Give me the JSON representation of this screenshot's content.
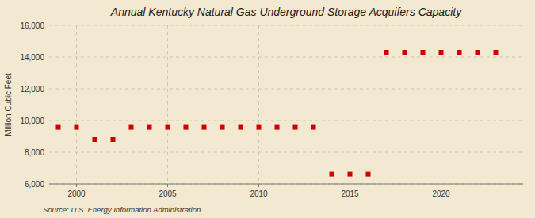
{
  "chart_data": {
    "type": "scatter",
    "title": "Annual Kentucky Natural Gas Underground Storage Acquifers Capacity",
    "y_label": "Million Cubic Feet",
    "annotations": [
      "Source: U.S. Energy Information Administration"
    ],
    "x": [
      1999,
      2000,
      2001,
      2002,
      2003,
      2004,
      2005,
      2006,
      2007,
      2008,
      2009,
      2010,
      2011,
      2012,
      2013,
      2014,
      2015,
      2016,
      2017,
      2018,
      2019,
      2020,
      2021,
      2022,
      2023
    ],
    "values": [
      9570,
      9570,
      8800,
      8800,
      9570,
      9570,
      9570,
      9570,
      9570,
      9570,
      9570,
      9570,
      9570,
      9570,
      9570,
      6620,
      6620,
      6620,
      14300,
      14300,
      14300,
      14300,
      14300,
      14300,
      14300
    ],
    "color": "#cc0000",
    "marker": "square",
    "xlim": [
      1998.5,
      2024.5
    ],
    "xticks": [
      2000,
      2005,
      2010,
      2015,
      2020
    ],
    "ylim": [
      6000,
      16000
    ],
    "yticks": [
      {
        "value": 6000,
        "label": "6,000"
      },
      {
        "value": 8000,
        "label": "8,000"
      },
      {
        "value": 10000,
        "label": "10,000"
      },
      {
        "value": 12000,
        "label": "12,000"
      },
      {
        "value": 14000,
        "label": "14,000"
      },
      {
        "value": 16000,
        "label": "16,000"
      }
    ],
    "grid": true
  }
}
